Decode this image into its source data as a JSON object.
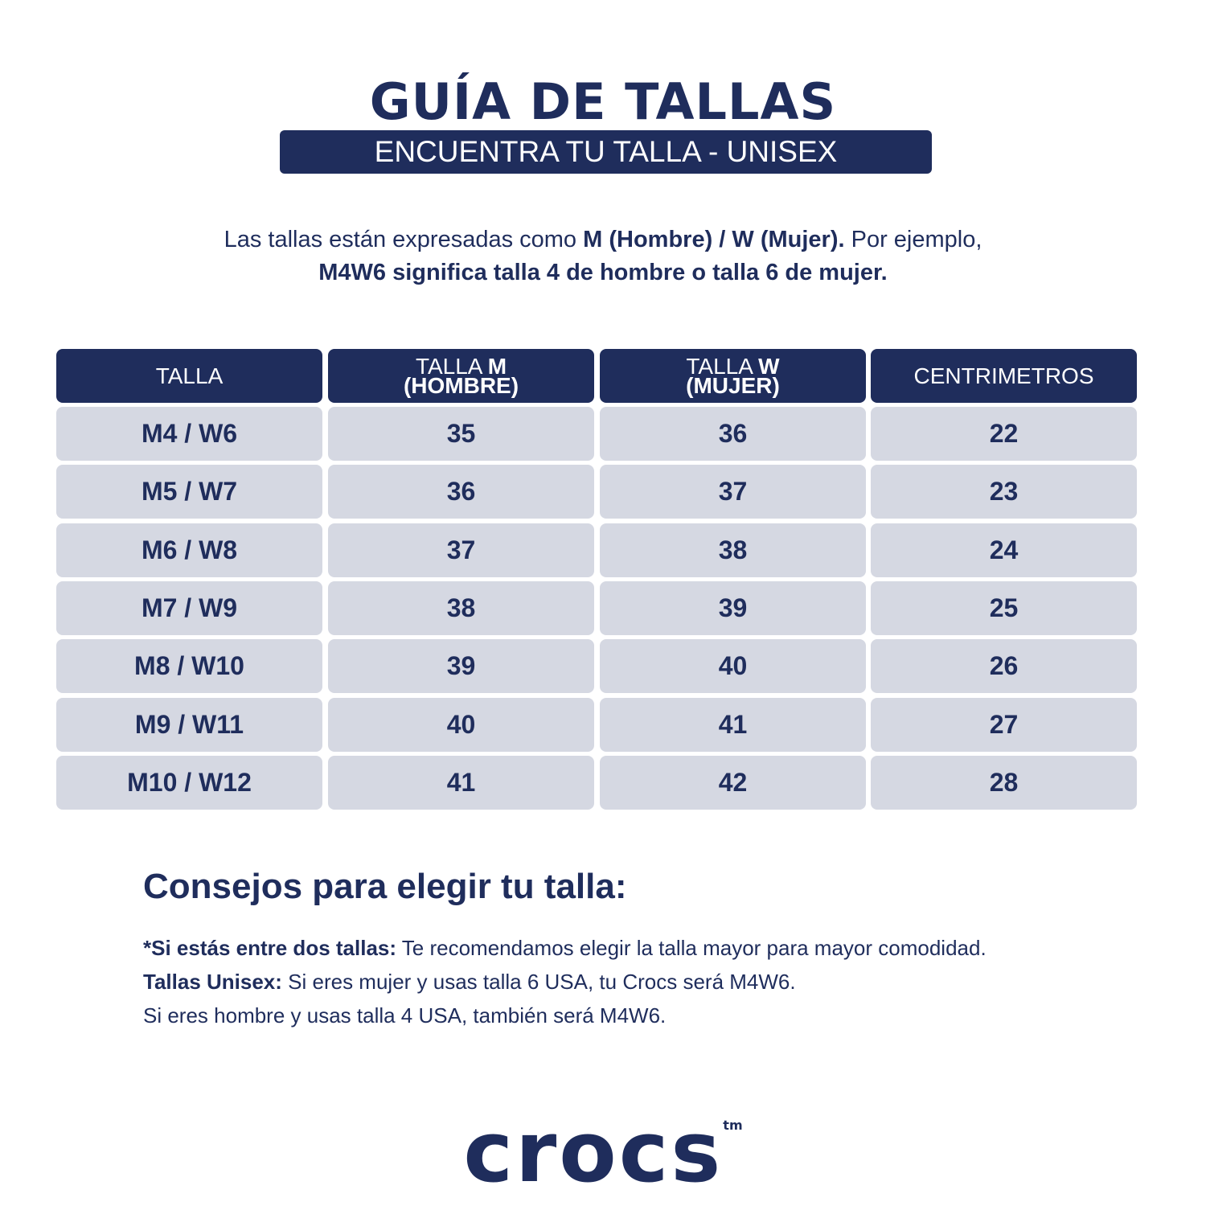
{
  "header": {
    "title": "GUÍA DE TALLAS",
    "subtitle": "ENCUENTRA TU TALLA - UNISEX"
  },
  "intro": {
    "line1_a": "Las tallas están expresadas como ",
    "line1_b": "M (Hombre) / W (Mujer).",
    "line1_c": " Por ejemplo,",
    "line2": "M4W6 significa talla 4 de hombre o talla 6 de mujer."
  },
  "table": {
    "headers": [
      {
        "line1": "TALLA",
        "line1_bold": "",
        "line2": ""
      },
      {
        "line1": "TALLA ",
        "line1_bold": "M",
        "line2": "(HOMBRE)"
      },
      {
        "line1": "TALLA ",
        "line1_bold": "W",
        "line2": "(MUJER)"
      },
      {
        "line1": "CENTRIMETROS",
        "line1_bold": "",
        "line2": ""
      }
    ],
    "rows": [
      [
        "M4 / W6",
        "35",
        "36",
        "22"
      ],
      [
        "M5 / W7",
        "36",
        "37",
        "23"
      ],
      [
        "M6 / W8",
        "37",
        "38",
        "24"
      ],
      [
        "M7 / W9",
        "38",
        "39",
        "25"
      ],
      [
        "M8 / W10",
        "39",
        "40",
        "26"
      ],
      [
        "M9 / W11",
        "40",
        "41",
        "27"
      ],
      [
        "M10 / W12",
        "41",
        "42",
        "28"
      ]
    ]
  },
  "tips": {
    "title": "Consejos para elegir tu talla:",
    "tip1_bold": "*Si estás entre dos tallas:",
    "tip1_text": " Te recomendamos elegir la talla mayor para mayor comodidad.",
    "tip2_bold": "Tallas Unisex:",
    "tip2_text": " Si eres mujer y usas talla 6 USA, tu Crocs será M4W6.",
    "tip3_text": "Si eres hombre y usas talla 4 USA, también será M4W6."
  },
  "brand": {
    "logo": "crocs",
    "tm": "tm"
  },
  "colors": {
    "navy": "#1f2d5c",
    "cell_bg": "#d5d8e2"
  }
}
